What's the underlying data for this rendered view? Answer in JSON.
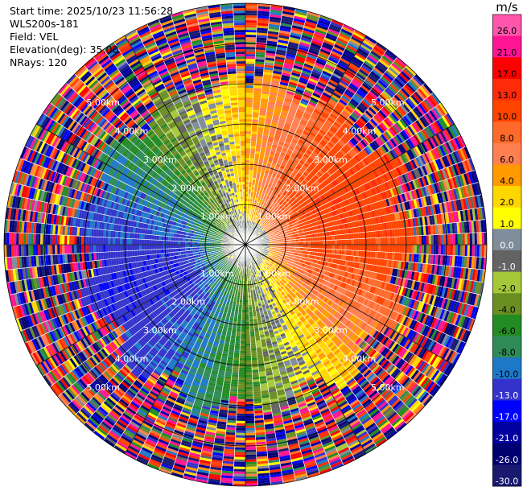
{
  "header": {
    "start_time": "Start time: 2025/10/23 11:56:28",
    "instrument": "WLS200s-181",
    "field": "Field: VEL",
    "elevation": "Elevation(deg): 35.00",
    "nrays": "NRays: 120"
  },
  "chart_data": {
    "type": "heatmap",
    "projection": "polar-ppi",
    "field": "VEL",
    "unit": "m/s",
    "n_rays": 120,
    "max_range_km": 6.0,
    "range_ring_labels": [
      "1.00km",
      "2.00km",
      "3.00km",
      "4.00km",
      "5.00km"
    ],
    "ring_label_bearings_deg": [
      45,
      135,
      225,
      315
    ],
    "spoke_bearings_deg": [
      0,
      30,
      60,
      90,
      120,
      150,
      180,
      210,
      240,
      270,
      300,
      330
    ],
    "noise_start_km": 4.2,
    "colorbar": {
      "label": "m/s",
      "ticks": [
        "26.0",
        "21.0",
        "17.0",
        "13.0",
        "10.0",
        "8.0",
        "6.0",
        "4.0",
        "2.0",
        "1.0",
        "0.0",
        "-1.0",
        "-2.0",
        "-4.0",
        "-6.0",
        "-8.0",
        "-10.0",
        "-13.0",
        "-17.0",
        "-21.0",
        "-26.0",
        "-30.0"
      ],
      "colors": [
        "#ff55aa",
        "#ff1493",
        "#ff0000",
        "#ff2a0a",
        "#ff4400",
        "#ff6a2a",
        "#ff7f50",
        "#ff9a00",
        "#ffd700",
        "#ffff00",
        "#7f8c99",
        "#636363",
        "#a5c83a",
        "#6b8e23",
        "#228b22",
        "#2e8b57",
        "#1e78c8",
        "#3333cc",
        "#0000ff",
        "#0000a0",
        "#000070",
        "#191970"
      ]
    }
  }
}
